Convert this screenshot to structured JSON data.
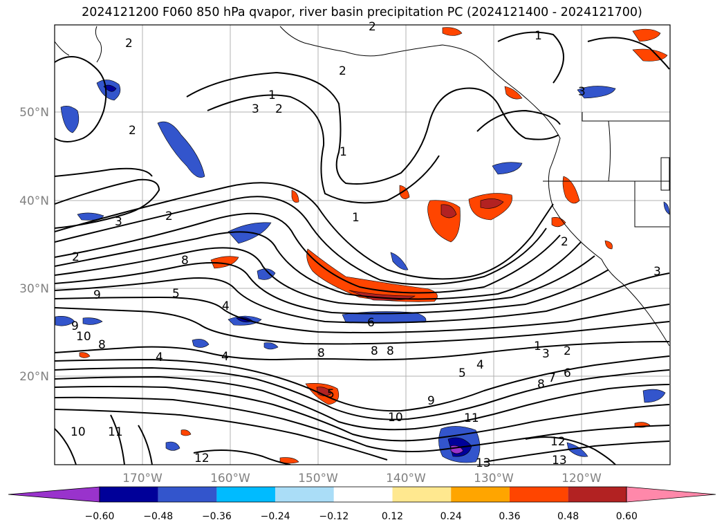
{
  "title": "2024121200 F060 850 hPa qvapor, river basin precipitation PC (2024121400 - 2024121700)",
  "lat_labels": [
    "50°N",
    "40°N",
    "30°N",
    "20°N"
  ],
  "lon_labels": [
    "170°W",
    "160°W",
    "150°W",
    "140°W",
    "130°W",
    "120°W"
  ],
  "contour_labels": [
    "2",
    "1",
    "2",
    "2",
    "3",
    "2",
    "2",
    "1",
    "3",
    "2",
    "1",
    "1",
    "3",
    "2",
    "8",
    "9",
    "9",
    "10",
    "8",
    "5",
    "4",
    "4",
    "4",
    "5",
    "6",
    "8",
    "8",
    "8",
    "1",
    "2",
    "3",
    "5",
    "4",
    "6",
    "7",
    "8",
    "9",
    "10",
    "11",
    "12",
    "13",
    "13",
    "11",
    "10",
    "2",
    "3",
    "12"
  ],
  "colorbar": {
    "ticks": [
      "−0.60",
      "−0.48",
      "−0.36",
      "−0.24",
      "−0.12",
      "0.12",
      "0.24",
      "0.36",
      "0.48",
      "0.60"
    ],
    "colors": [
      "#9933cc",
      "#000099",
      "#3355cc",
      "#00bbff",
      "#aaddf7",
      "#ffffff",
      "#ffe88f",
      "#ffa500",
      "#ff4500",
      "#b22222",
      "#ff88aa"
    ]
  }
}
